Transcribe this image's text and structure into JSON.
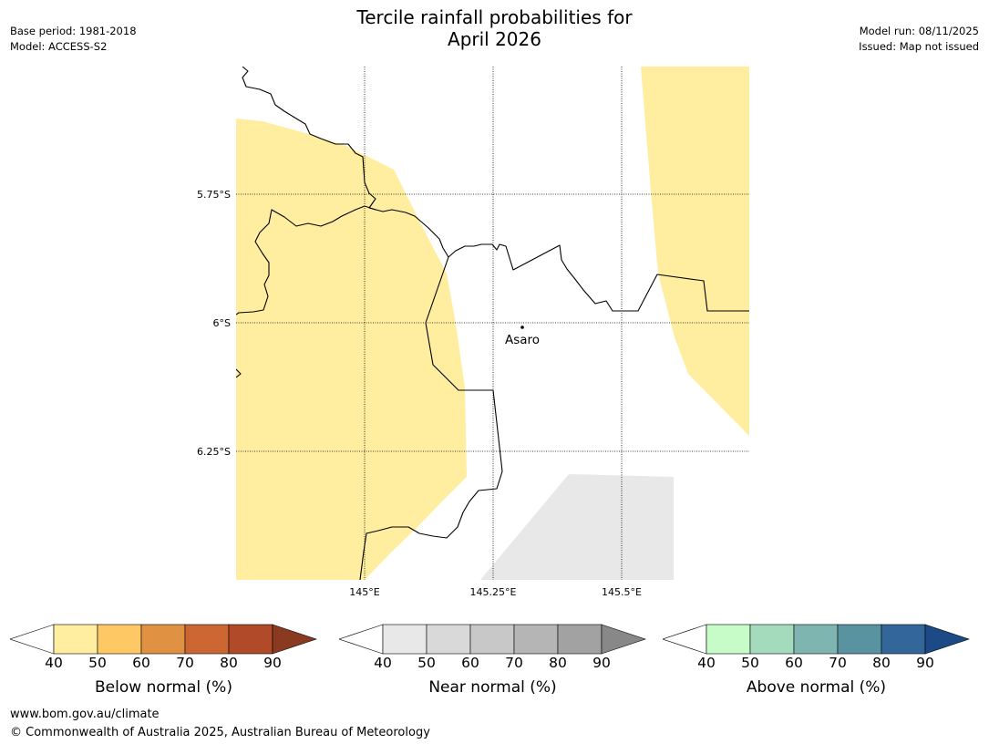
{
  "header": {
    "title_line1": "Tercile rainfall probabilities for",
    "title_line2": "April 2026",
    "base_period": "Base period: 1981-2018",
    "model": "Model: ACCESS-S2",
    "model_run": "Model run: 08/11/2025",
    "issued": "Issued: Map not issued"
  },
  "map": {
    "lat_labels": [
      "5.75°S",
      "6°S",
      "6.25°S"
    ],
    "lon_labels": [
      "145°E",
      "145.25°E",
      "145.5°E"
    ],
    "place": "Asaro",
    "below_fill": "#ffeda0",
    "near_fill": "#e8e8e8"
  },
  "colorbars": [
    {
      "label": "Below normal (%)",
      "ticks": [
        "40",
        "50",
        "60",
        "70",
        "80",
        "90"
      ],
      "colors": [
        "#ffffff",
        "#ffeda0",
        "#fec965",
        "#e09142",
        "#cc6633",
        "#b04a28",
        "#8b3a22"
      ]
    },
    {
      "label": "Near normal (%)",
      "ticks": [
        "40",
        "50",
        "60",
        "70",
        "80",
        "90"
      ],
      "colors": [
        "#ffffff",
        "#e8e8e8",
        "#d9d9d9",
        "#c8c8c8",
        "#b5b5b5",
        "#a2a2a2",
        "#888888"
      ]
    },
    {
      "label": "Above normal (%)",
      "ticks": [
        "40",
        "50",
        "60",
        "70",
        "80",
        "90"
      ],
      "colors": [
        "#ffffff",
        "#c7fbc7",
        "#a4dbbc",
        "#7fb5b0",
        "#5a93a0",
        "#336699",
        "#1b4a86"
      ]
    }
  ],
  "footer": {
    "url": "www.bom.gov.au/climate",
    "copyright": "© Commonwealth of Australia 2025, Australian Bureau of Meteorology"
  }
}
